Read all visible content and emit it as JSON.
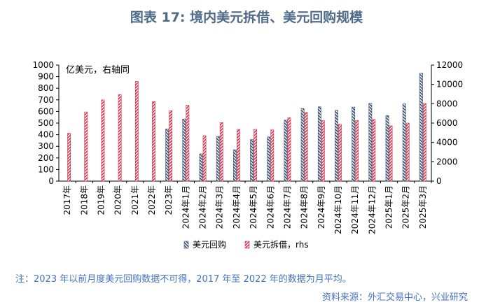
{
  "title": "图表 17: 境内美元拆借、美元回购规模",
  "note": "注：2023 年以前月度美元回购数据不可得，2017 年至 2022 年的数据为月平均。",
  "source": "资料来源：外汇交易中心，兴业研究",
  "colors": {
    "repo": "#3a4f6e",
    "lending": "#d8324b",
    "title": "#4f6b8a",
    "note": "#4472c4"
  },
  "chart_data": {
    "type": "bar",
    "title": "",
    "y_unit_label": "亿美元，右轴同",
    "categories": [
      "2017年",
      "2018年",
      "2019年",
      "2020年",
      "2021年",
      "2022年",
      "2023年",
      "2024年1月",
      "2024年2月",
      "2024年3月",
      "2024年4月",
      "2024年5月",
      "2024年6月",
      "2024年7月",
      "2024年8月",
      "2024年9月",
      "2024年10月",
      "2024年11月",
      "2024年12月",
      "2025年1月",
      "2025年2月",
      "2025年3月"
    ],
    "ylim": [
      0,
      1000
    ],
    "yticks": [
      0,
      100,
      200,
      300,
      400,
      500,
      600,
      700,
      800,
      900,
      1000
    ],
    "y2lim": [
      0,
      12000
    ],
    "y2ticks": [
      0,
      2000,
      4000,
      6000,
      8000,
      10000,
      12000
    ],
    "legend_position": "bottom",
    "grid": false,
    "series": [
      {
        "name": "美元回购",
        "axis": "left",
        "pattern": "hatch",
        "values": [
          null,
          null,
          null,
          null,
          null,
          null,
          450,
          535,
          235,
          385,
          270,
          358,
          380,
          525,
          625,
          640,
          610,
          638,
          670,
          565,
          665,
          930
        ]
      },
      {
        "name": "美元拆借，rhs",
        "axis": "right",
        "pattern": "hatch",
        "values": [
          4950,
          7150,
          8400,
          8950,
          10300,
          8220,
          7280,
          7850,
          4700,
          6050,
          5350,
          5350,
          5300,
          6550,
          7100,
          6250,
          5870,
          6270,
          6370,
          5720,
          6000,
          8030
        ]
      }
    ]
  }
}
